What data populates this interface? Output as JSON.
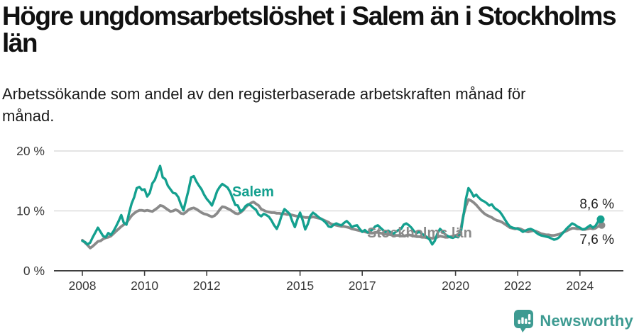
{
  "header": {
    "title_line1": "Högre ungdomsarbetslöshet i Salem än i Stockholms",
    "title_line2": "län",
    "subtitle_line1": "Arbetssökande som andel av den registerbaserade arbetskraften månad för",
    "subtitle_line2": "månad."
  },
  "chart_data": {
    "type": "line",
    "title": "Högre ungdomsarbetslöshet i Salem än i Stockholms län",
    "subtitle": "Arbetssökande som andel av den registerbaserade arbetskraften månad för månad.",
    "unit": "%",
    "x_start_year": 2008,
    "x_interval": "monthly",
    "x_end": "2024-09",
    "x_ticks": [
      2008,
      2010,
      2012,
      2015,
      2017,
      2020,
      2022,
      2024
    ],
    "y_ticks": [
      {
        "value": 0,
        "label": "0 %"
      },
      {
        "value": 10,
        "label": "10 %"
      },
      {
        "value": 20,
        "label": "20 %"
      }
    ],
    "ylim": [
      0,
      20
    ],
    "grid": "horizontal",
    "legend": "inline-labels",
    "series": [
      {
        "name": "Salem",
        "color": "#14a08f",
        "end_label": "8,6 %",
        "end_value": 8.6,
        "values": [
          5.0,
          4.8,
          4.4,
          4.7,
          5.6,
          6.4,
          7.2,
          6.5,
          5.8,
          5.6,
          6.3,
          6.0,
          6.6,
          7.4,
          8.3,
          9.3,
          8.0,
          7.7,
          9.6,
          11.2,
          12.3,
          13.8,
          14.0,
          13.5,
          13.6,
          12.4,
          13.0,
          14.6,
          15.2,
          16.4,
          17.5,
          15.6,
          15.3,
          14.2,
          13.6,
          13.0,
          12.9,
          12.3,
          11.1,
          10.1,
          11.8,
          13.5,
          15.6,
          15.8,
          14.9,
          14.2,
          13.6,
          12.7,
          12.0,
          11.5,
          10.9,
          12.0,
          13.3,
          14.0,
          14.5,
          14.2,
          13.9,
          13.2,
          12.1,
          11.0,
          10.9,
          9.9,
          10.2,
          10.8,
          11.1,
          10.9,
          10.5,
          10.2,
          9.4,
          9.1,
          9.5,
          9.3,
          9.0,
          8.4,
          7.6,
          7.0,
          8.0,
          9.4,
          10.3,
          9.9,
          9.5,
          8.3,
          7.3,
          8.6,
          9.7,
          8.5,
          6.9,
          7.8,
          9.2,
          9.7,
          9.4,
          9.0,
          8.7,
          8.4,
          8.0,
          7.4,
          7.3,
          7.7,
          7.9,
          7.7,
          7.6,
          8.0,
          8.3,
          7.9,
          7.3,
          7.5,
          7.6,
          7.0,
          6.5,
          6.8,
          6.4,
          6.6,
          6.9,
          7.4,
          7.6,
          7.2,
          6.8,
          6.5,
          6.7,
          6.4,
          6.2,
          6.5,
          6.8,
          7.0,
          7.7,
          7.9,
          7.6,
          7.2,
          6.6,
          6.3,
          6.5,
          6.2,
          5.9,
          5.6,
          5.2,
          4.4,
          5.0,
          6.2,
          7.0,
          6.6,
          6.1,
          5.8,
          5.6,
          5.5,
          5.7,
          5.6,
          6.3,
          9.0,
          12.0,
          13.8,
          13.2,
          12.4,
          12.7,
          12.2,
          11.8,
          11.6,
          11.3,
          10.9,
          11.1,
          10.5,
          10.2,
          9.9,
          9.3,
          8.6,
          7.9,
          7.4,
          7.2,
          7.1,
          7.0,
          6.8,
          6.5,
          6.7,
          6.9,
          7.0,
          6.8,
          6.4,
          6.1,
          5.9,
          5.8,
          5.7,
          5.6,
          5.4,
          5.2,
          5.3,
          5.6,
          6.1,
          6.6,
          7.1,
          7.5,
          7.9,
          7.7,
          7.4,
          7.2,
          6.9,
          7.0,
          7.3,
          7.6,
          7.2,
          7.5,
          8.2,
          8.6
        ]
      },
      {
        "name": "Stockholms län",
        "color": "#8a8a8a",
        "end_label": "7,6 %",
        "end_value": 7.6,
        "values": [
          5.1,
          4.7,
          4.3,
          3.8,
          4.1,
          4.5,
          4.9,
          5.0,
          5.3,
          5.5,
          5.6,
          5.8,
          6.2,
          6.6,
          7.0,
          7.4,
          7.7,
          8.0,
          8.6,
          9.2,
          9.6,
          9.9,
          10.1,
          10.1,
          10.0,
          10.1,
          10.0,
          9.9,
          10.2,
          10.5,
          10.9,
          10.8,
          10.5,
          10.2,
          9.9,
          10.0,
          10.2,
          10.0,
          9.6,
          9.5,
          9.8,
          10.2,
          10.4,
          10.5,
          10.3,
          10.0,
          9.7,
          9.5,
          9.4,
          9.2,
          9.0,
          9.2,
          9.6,
          10.2,
          10.7,
          10.6,
          10.4,
          10.2,
          9.9,
          9.6,
          9.5,
          9.7,
          10.1,
          10.6,
          11.0,
          11.3,
          11.5,
          11.2,
          10.9,
          10.3,
          10.1,
          9.9,
          9.8,
          9.7,
          9.7,
          9.6,
          9.6,
          9.5,
          9.5,
          9.4,
          9.4,
          9.3,
          9.2,
          9.1,
          9.1,
          9.0,
          8.9,
          8.9,
          8.9,
          9.0,
          8.9,
          8.8,
          8.7,
          8.5,
          8.3,
          8.1,
          7.8,
          7.7,
          7.6,
          7.5,
          7.4,
          7.4,
          7.3,
          7.2,
          7.0,
          6.9,
          6.8,
          6.7,
          6.6,
          6.5,
          6.4,
          6.3,
          6.3,
          6.4,
          6.4,
          6.3,
          6.2,
          6.1,
          6.1,
          6.0,
          6.0,
          5.9,
          5.9,
          5.8,
          5.8,
          5.9,
          6.0,
          5.9,
          5.8,
          5.7,
          5.7,
          5.6,
          5.6,
          5.5,
          5.5,
          5.4,
          5.5,
          5.6,
          5.8,
          5.7,
          5.6,
          5.6,
          5.7,
          5.8,
          5.9,
          6.0,
          6.8,
          9.2,
          10.8,
          11.9,
          11.7,
          11.4,
          11.0,
          10.5,
          10.0,
          9.6,
          9.3,
          9.1,
          8.9,
          8.6,
          8.4,
          8.3,
          8.1,
          7.8,
          7.5,
          7.2,
          7.1,
          7.0,
          7.1,
          7.0,
          6.8,
          6.6,
          6.5,
          6.6,
          6.7,
          6.6,
          6.4,
          6.2,
          6.1,
          6.0,
          6.0,
          5.9,
          5.9,
          6.0,
          6.1,
          6.3,
          6.5,
          6.7,
          6.9,
          7.1,
          7.1,
          7.0,
          7.0,
          6.9,
          6.9,
          7.0,
          7.1,
          7.0,
          7.1,
          7.4,
          7.6
        ]
      }
    ]
  },
  "footer": {
    "brand": "Newsworthy"
  },
  "colors": {
    "salem": "#14a08f",
    "stockholm": "#8a8a8a",
    "grid": "#dcdcdc",
    "axis": "#3f3f3f",
    "tick_text": "#3a3a3a",
    "brand": "#3e9b92"
  }
}
